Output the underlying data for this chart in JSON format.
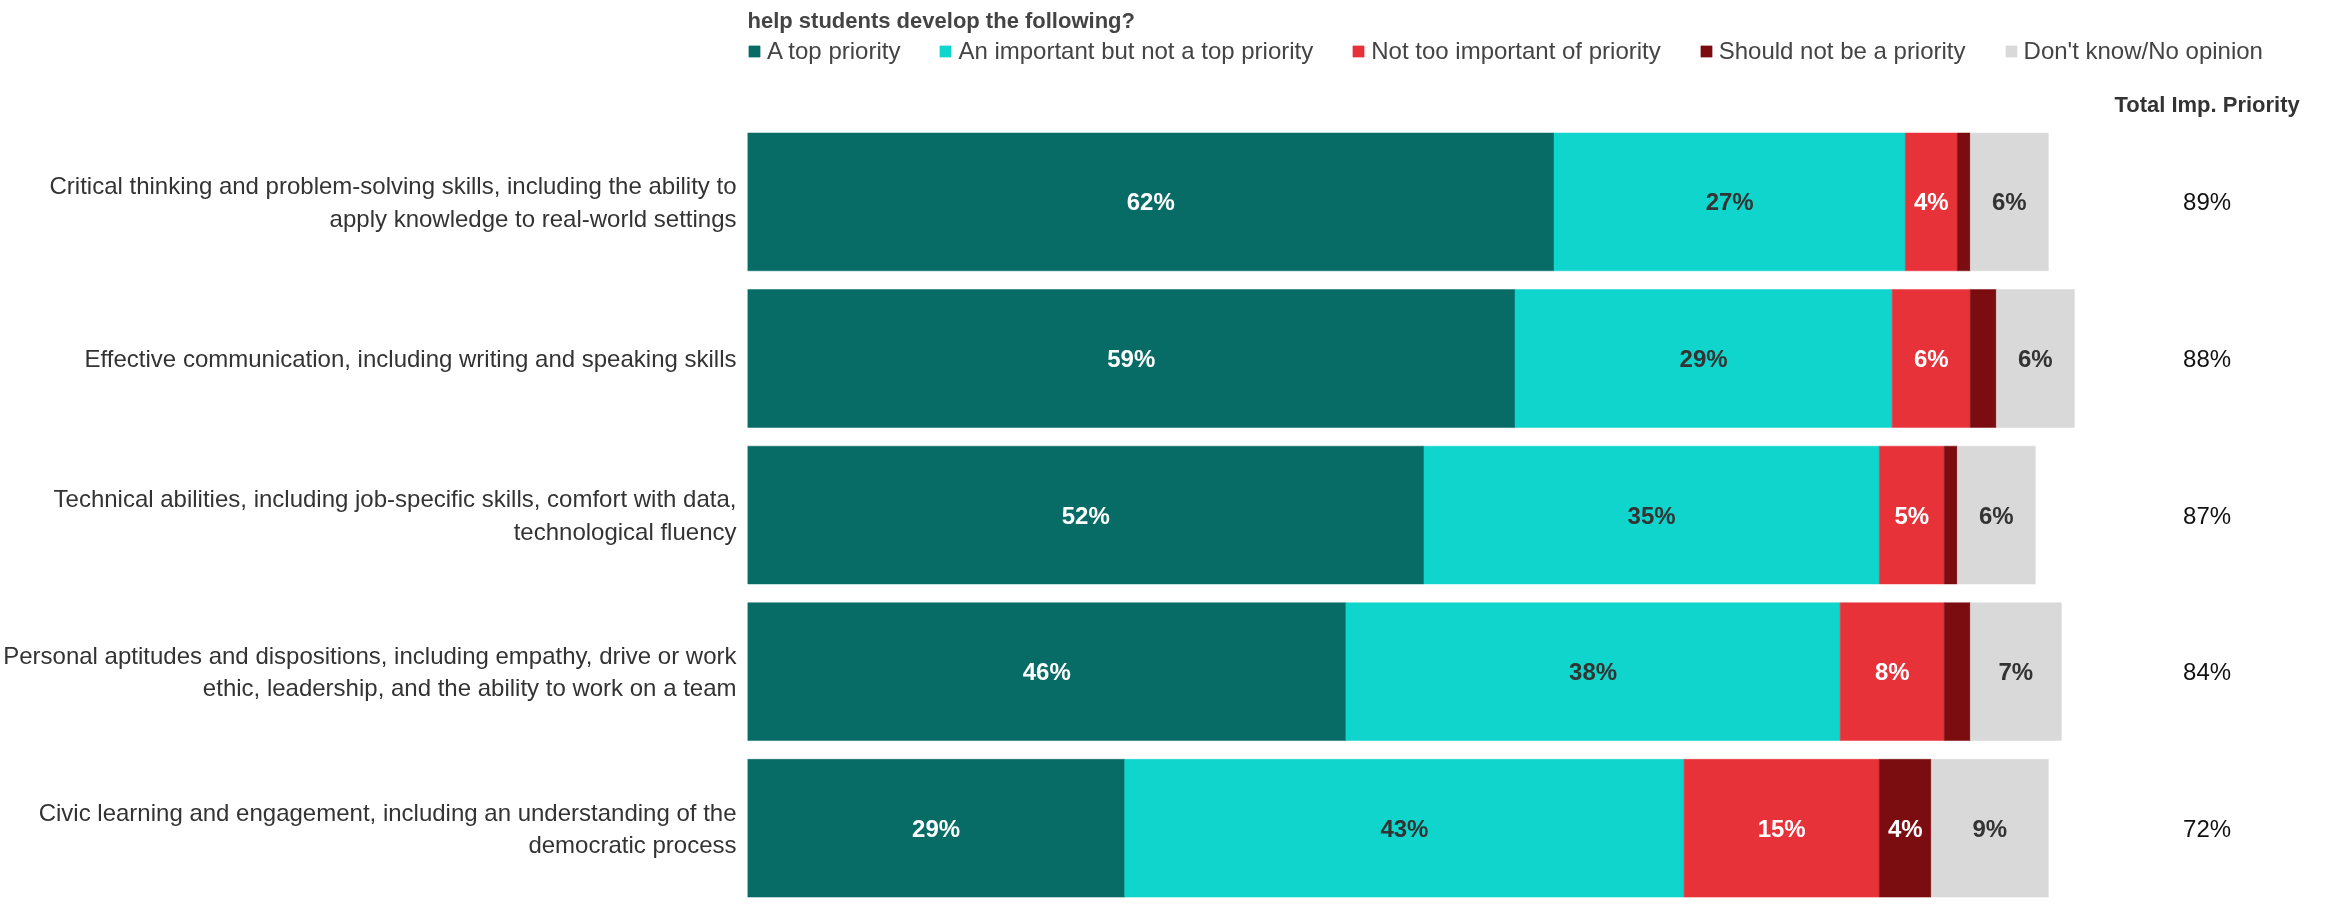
{
  "chart_data": {
    "type": "bar",
    "orientation": "horizontal",
    "stacked": true,
    "title": "help students develop the following?",
    "categories": [
      "Critical thinking and problem-solving skills, including the ability to apply knowledge to real-world settings",
      "Effective communication, including writing and speaking skills",
      "Technical abilities, including job-specific skills, comfort with data, technological fluency",
      "Personal aptitudes and dispositions, including empathy, drive or work ethic, leadership, and the ability to work on a team",
      "Civic learning and engagement, including an understanding of the democratic process"
    ],
    "series": [
      {
        "name": "A top priority",
        "color": "#076b66",
        "values": [
          62,
          59,
          52,
          46,
          29
        ],
        "value_labels": [
          "62%",
          "59%",
          "52%",
          "46%",
          "29%"
        ]
      },
      {
        "name": "An important but not a top priority",
        "color": "#0fd5cc",
        "values": [
          27,
          29,
          35,
          38,
          43
        ],
        "value_labels": [
          "27%",
          "29%",
          "35%",
          "38%",
          "43%"
        ]
      },
      {
        "name": "Not too important of priority",
        "color": "#e8323a",
        "values": [
          4,
          6,
          5,
          8,
          15
        ],
        "value_labels": [
          "4%",
          "6%",
          "5%",
          "8%",
          "15%"
        ]
      },
      {
        "name": "Should not be a priority",
        "color": "#7b0c0f",
        "values": [
          1,
          2,
          1,
          2,
          4
        ],
        "value_labels": [
          null,
          null,
          null,
          null,
          "4%"
        ]
      },
      {
        "name": "Don't know/No opinion",
        "color": "#d9d9d9",
        "values": [
          6,
          6,
          6,
          7,
          9
        ],
        "value_labels": [
          "6%",
          "6%",
          "6%",
          "7%",
          "9%"
        ]
      }
    ],
    "annotations": [
      "Total Imp. Priority",
      "89%",
      "88%",
      "87%",
      "84%",
      "72%"
    ],
    "legend": "top",
    "tick_labels": "y",
    "grid": false
  }
}
